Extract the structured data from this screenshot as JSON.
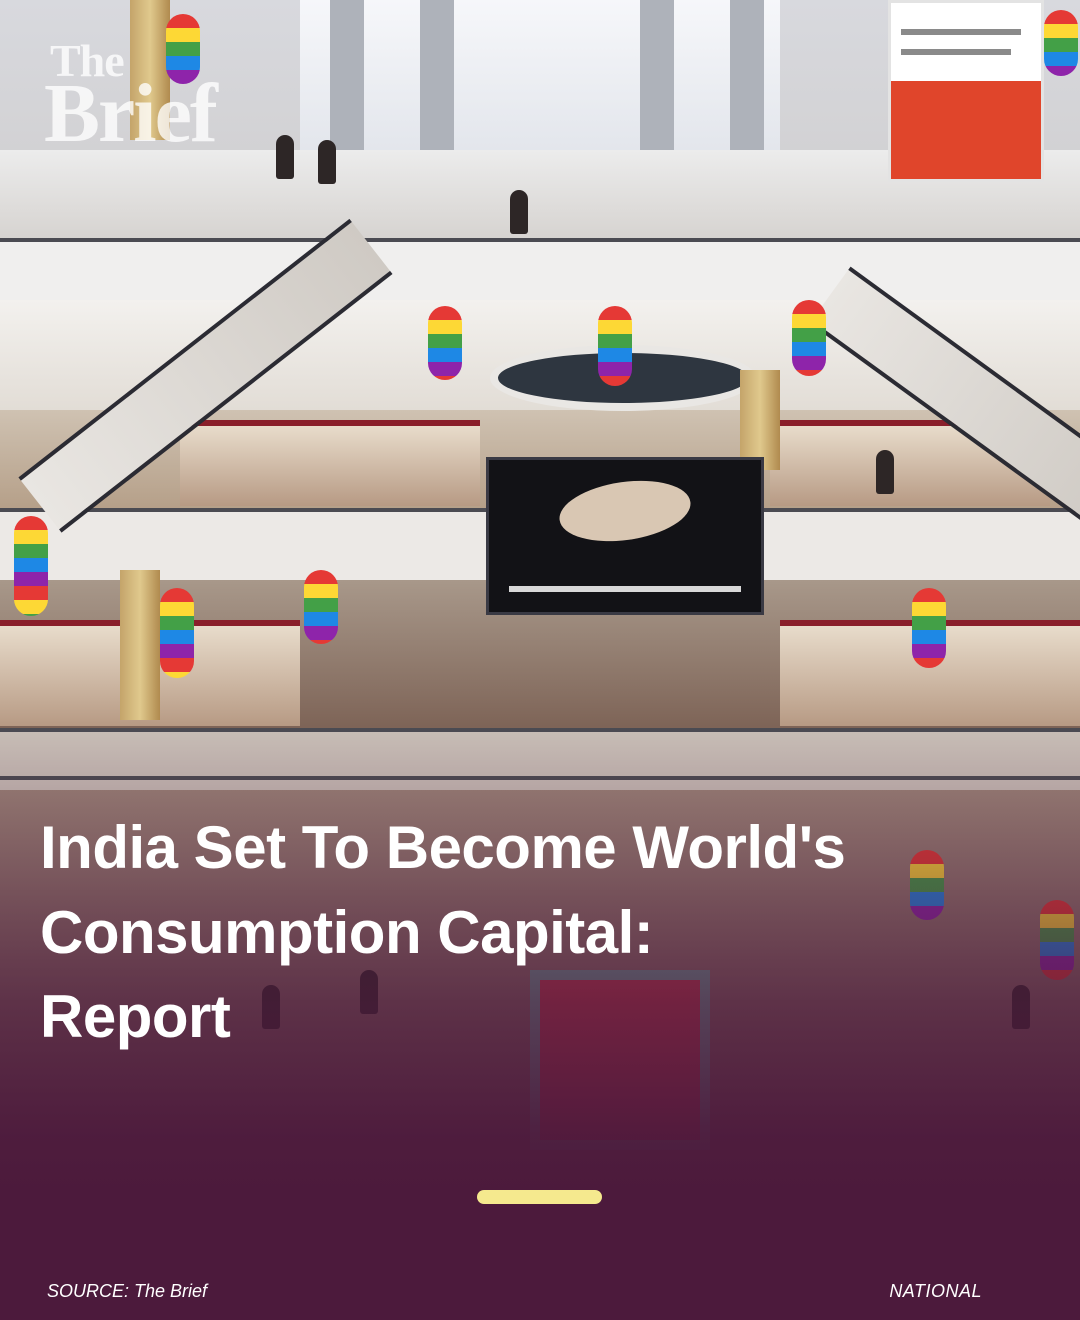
{
  "brand": {
    "logo_line1": "The",
    "logo_line2": "Brief"
  },
  "headline": {
    "line1": "India Set To Become World's",
    "line2": "Consumption Capital:",
    "line3": "Report"
  },
  "footer": {
    "source": "SOURCE: The Brief",
    "category": "NATIONAL"
  },
  "colors": {
    "overlay": "#4c1a3c",
    "indicator": "#f5e98e",
    "text": "#ffffff"
  }
}
